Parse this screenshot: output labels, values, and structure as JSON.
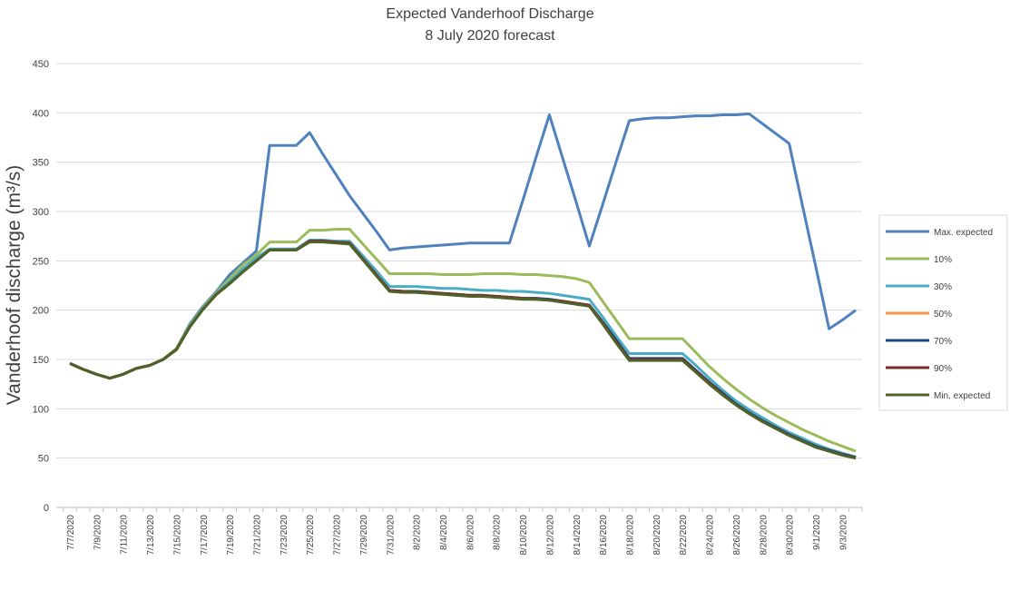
{
  "chart_data": {
    "type": "line",
    "title": "Expected Vanderhoof Discharge",
    "subtitle": "8 July 2020 forecast",
    "y_label": "Vanderhoof discharge (m³/s)",
    "categories": [
      "7/7/2020",
      null,
      "7/9/2020",
      null,
      "7/11/2020",
      null,
      "7/13/2020",
      null,
      "7/15/2020",
      null,
      "7/17/2020",
      null,
      "7/19/2020",
      null,
      "7/21/2020",
      null,
      "7/23/2020",
      null,
      "7/25/2020",
      null,
      "7/27/2020",
      null,
      "7/29/2020",
      null,
      "7/31/2020",
      null,
      "8/2/2020",
      null,
      "8/4/2020",
      null,
      "8/6/2020",
      null,
      "8/8/2020",
      null,
      "8/10/2020",
      null,
      "8/12/2020",
      null,
      "8/14/2020",
      null,
      "8/16/2020",
      null,
      "8/18/2020",
      null,
      "8/20/2020",
      null,
      "8/22/2020",
      null,
      "8/24/2020",
      null,
      "8/26/2020",
      null,
      "8/28/2020",
      null,
      "8/30/2020",
      null,
      "9/1/2020",
      null,
      "9/3/2020",
      null
    ],
    "series": [
      {
        "name": "Max. expected",
        "color": "#4f81bd",
        "values": [
          146,
          140,
          135,
          131,
          135,
          141,
          144,
          150,
          161,
          186,
          204,
          219,
          236,
          248,
          260,
          367,
          367,
          367,
          380,
          358,
          337,
          316,
          298,
          280,
          261,
          263,
          264,
          265,
          266,
          267,
          268,
          268,
          268,
          268,
          311,
          355,
          398,
          354,
          310,
          265,
          307,
          350,
          392,
          394,
          395,
          395,
          396,
          397,
          397,
          398,
          398,
          399,
          389,
          379,
          369,
          306,
          244,
          181,
          190,
          200
        ]
      },
      {
        "name": "10%",
        "color": "#9bbb59",
        "values": [
          146,
          140,
          135,
          131,
          135,
          141,
          144,
          150,
          161,
          185,
          203,
          218,
          232,
          246,
          256,
          269,
          269,
          269,
          281,
          281,
          282,
          282,
          267,
          252,
          237,
          237,
          237,
          237,
          236,
          236,
          236,
          237,
          237,
          237,
          236,
          236,
          235,
          234,
          232,
          228,
          209,
          190,
          171,
          171,
          171,
          171,
          171,
          157,
          143,
          131,
          120,
          110,
          101,
          93,
          86,
          79,
          73,
          67,
          62,
          57
        ]
      },
      {
        "name": "30%",
        "color": "#4bacc6",
        "values": [
          146,
          140,
          135,
          131,
          135,
          141,
          144,
          150,
          160,
          184,
          202,
          217,
          229,
          242,
          253,
          262,
          262,
          262,
          271,
          271,
          270,
          270,
          255,
          240,
          224,
          224,
          224,
          223,
          222,
          222,
          221,
          220,
          220,
          219,
          219,
          218,
          217,
          215,
          213,
          211,
          193,
          174,
          156,
          156,
          156,
          156,
          156,
          144,
          131,
          119,
          108,
          99,
          91,
          83,
          76,
          70,
          64,
          59,
          55,
          51
        ]
      },
      {
        "name": "50%",
        "color": "#f79646",
        "values": [
          146,
          140,
          135,
          131,
          135,
          141,
          144,
          150,
          160,
          183,
          201,
          216,
          227,
          239,
          250,
          261,
          261,
          261,
          270,
          270,
          269,
          268,
          252,
          236,
          220,
          219,
          219,
          218,
          217,
          216,
          215,
          215,
          214,
          213,
          212,
          212,
          211,
          209,
          207,
          205,
          187,
          168,
          150,
          150,
          150,
          150,
          150,
          138,
          126,
          115,
          105,
          96,
          88,
          81,
          74,
          68,
          62,
          58,
          54,
          51
        ]
      },
      {
        "name": "70%",
        "color": "#1f497d",
        "values": [
          146,
          140,
          135,
          131,
          135,
          141,
          144,
          150,
          160,
          183,
          201,
          216,
          227,
          239,
          250,
          261,
          261,
          261,
          270,
          270,
          269,
          268,
          252,
          236,
          220,
          219,
          219,
          218,
          217,
          216,
          215,
          215,
          214,
          213,
          212,
          212,
          211,
          209,
          207,
          205,
          188,
          170,
          151,
          151,
          151,
          151,
          151,
          139,
          127,
          116,
          105,
          96,
          88,
          81,
          74,
          68,
          62,
          58,
          54,
          51
        ]
      },
      {
        "name": "90%",
        "color": "#772c2a",
        "values": [
          146,
          140,
          135,
          131,
          135,
          141,
          144,
          150,
          160,
          183,
          201,
          216,
          227,
          239,
          250,
          261,
          261,
          261,
          270,
          270,
          269,
          268,
          252,
          236,
          220,
          219,
          218,
          218,
          217,
          216,
          215,
          215,
          214,
          213,
          212,
          211,
          210,
          209,
          207,
          205,
          187,
          168,
          150,
          150,
          150,
          150,
          150,
          138,
          126,
          115,
          104,
          95,
          87,
          80,
          73,
          67,
          61,
          57,
          53,
          50
        ]
      },
      {
        "name": "Min. expected",
        "color": "#4f6228",
        "values": [
          146,
          140,
          135,
          131,
          135,
          141,
          144,
          150,
          160,
          183,
          201,
          216,
          227,
          239,
          250,
          261,
          261,
          261,
          269,
          269,
          268,
          267,
          251,
          235,
          219,
          218,
          218,
          217,
          216,
          215,
          214,
          214,
          213,
          212,
          211,
          211,
          210,
          208,
          206,
          204,
          186,
          167,
          149,
          149,
          149,
          149,
          149,
          137,
          125,
          114,
          104,
          95,
          87,
          80,
          73,
          67,
          61,
          57,
          53,
          50
        ]
      }
    ],
    "ylim": [
      0,
      450
    ],
    "yticks": [
      0,
      50,
      100,
      150,
      200,
      250,
      300,
      350,
      400,
      450
    ],
    "grid": true,
    "legend": "right"
  }
}
